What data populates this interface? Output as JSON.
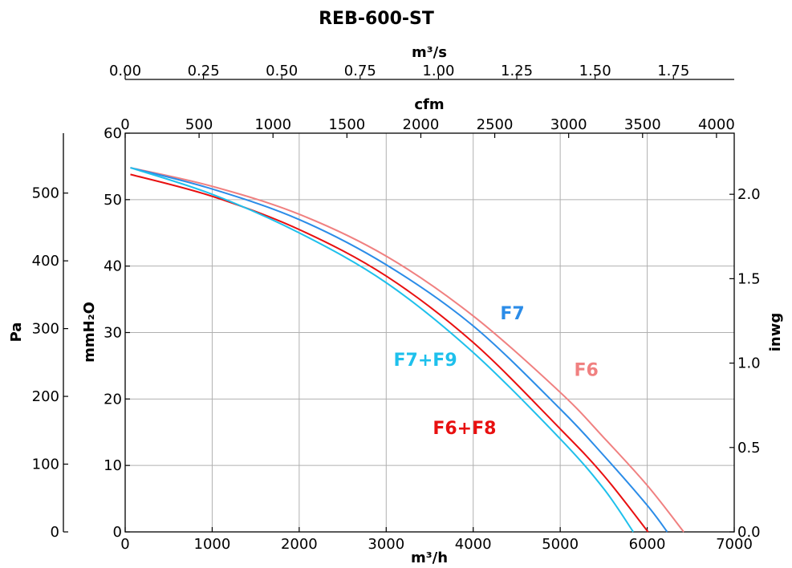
{
  "chart_data": {
    "type": "line",
    "title": "REB-600-ST",
    "grid": true,
    "x_bottom": {
      "label": "m³/h",
      "range": [
        0,
        7000
      ],
      "ticks": [
        0,
        1000,
        2000,
        3000,
        4000,
        5000,
        6000,
        7000
      ],
      "tick_labels": [
        "0",
        "1000",
        "2000",
        "3000",
        "4000",
        "5000",
        "6000",
        "7000"
      ]
    },
    "x_top_1": {
      "label": "cfm",
      "range": [
        0,
        4120
      ],
      "ticks": [
        0,
        500,
        1000,
        1500,
        2000,
        2500,
        3000,
        3500,
        4000
      ],
      "tick_labels": [
        "0",
        "500",
        "1000",
        "1500",
        "2000",
        "2500",
        "3000",
        "3500",
        "4000"
      ]
    },
    "x_top_2": {
      "label": "m³/s",
      "range": [
        0,
        1.944
      ],
      "ticks": [
        0,
        0.25,
        0.5,
        0.75,
        1.0,
        1.25,
        1.5,
        1.75
      ],
      "tick_labels": [
        "0.00",
        "0.25",
        "0.50",
        "0.75",
        "1.00",
        "1.25",
        "1.50",
        "1.75"
      ]
    },
    "y_main": {
      "label": "mmH₂O",
      "range": [
        0,
        60
      ],
      "ticks": [
        0,
        10,
        20,
        30,
        40,
        50,
        60
      ],
      "tick_labels": [
        "0",
        "10",
        "20",
        "30",
        "40",
        "50",
        "60"
      ]
    },
    "y_left_outer": {
      "label": "Pa",
      "range": [
        0,
        588.4
      ],
      "ticks": [
        0,
        100,
        200,
        300,
        400,
        500
      ],
      "tick_labels": [
        "0",
        "100",
        "200",
        "300",
        "400",
        "500"
      ]
    },
    "y_right": {
      "label": "inwg",
      "range": [
        0,
        2.362
      ],
      "ticks": [
        0,
        0.5,
        1.0,
        1.5,
        2.0
      ],
      "tick_labels": [
        "0.0",
        "0.5",
        "1.0",
        "1.5",
        "2.0"
      ]
    },
    "series": [
      {
        "name": "F6",
        "color": "#f08080",
        "label_at": [
          5300,
          23.5
        ],
        "x": [
          0,
          1000,
          2000,
          3000,
          4000,
          5000,
          5500,
          6000,
          6420
        ],
        "y": [
          54.8,
          52.0,
          47.8,
          41.5,
          32.5,
          21.0,
          14.2,
          7.0,
          0
        ]
      },
      {
        "name": "F7",
        "color": "#2b8ce8",
        "label_at": [
          4450,
          32.0
        ],
        "x": [
          0,
          1000,
          2000,
          3000,
          4000,
          5000,
          5500,
          6000,
          6230
        ],
        "y": [
          54.8,
          51.6,
          47.0,
          40.2,
          31.0,
          18.5,
          11.5,
          4.0,
          0
        ]
      },
      {
        "name": "F6+F8",
        "color": "#e81010",
        "label_at": [
          3900,
          14.7
        ],
        "x": [
          0,
          1000,
          2000,
          3000,
          4000,
          5000,
          5500,
          6010
        ],
        "y": [
          53.8,
          50.5,
          45.5,
          38.5,
          28.5,
          15.5,
          8.5,
          0
        ]
      },
      {
        "name": "F7+F9",
        "color": "#1ec0ec",
        "label_at": [
          3450,
          25.0
        ],
        "x": [
          0,
          1000,
          2000,
          3000,
          4000,
          5000,
          5500,
          5840
        ],
        "y": [
          54.8,
          50.8,
          45.0,
          37.5,
          27.0,
          14.0,
          6.5,
          0
        ]
      }
    ]
  }
}
